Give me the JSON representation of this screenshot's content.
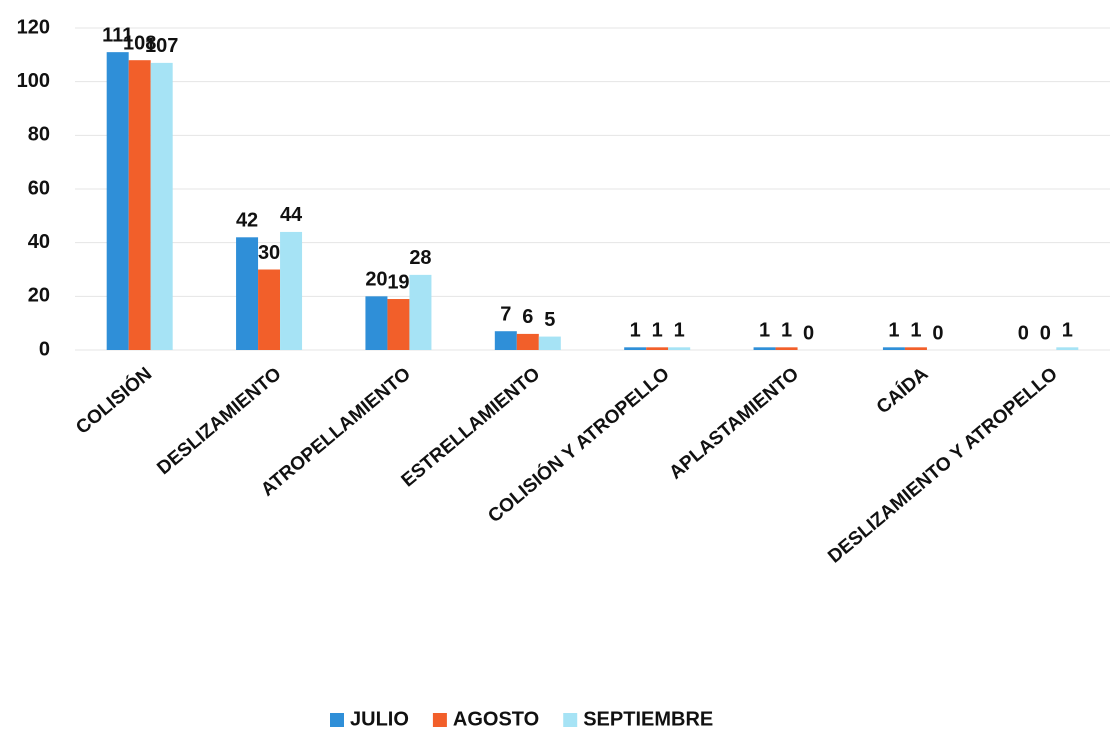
{
  "chart_data": {
    "type": "bar",
    "categories": [
      "COLISIÓN",
      "DESLIZAMIENTO",
      "ATROPELLAMIENTO",
      "ESTRELLAMIENTO",
      "COLISIÓN Y ATROPELLO",
      "APLASTAMIENTO",
      "CAÍDA",
      "DESLIZAMIENTO Y ATROPELLO"
    ],
    "series": [
      {
        "name": "JULIO",
        "color": "#2f8fd8",
        "values": [
          111,
          42,
          20,
          7,
          1,
          1,
          1,
          0
        ]
      },
      {
        "name": "AGOSTO",
        "color": "#f25f2a",
        "values": [
          108,
          30,
          19,
          6,
          1,
          1,
          1,
          0
        ]
      },
      {
        "name": "SEPTIEMBRE",
        "color": "#a6e3f5",
        "values": [
          107,
          44,
          28,
          5,
          1,
          0,
          0,
          1
        ]
      }
    ],
    "ylim": [
      0,
      120
    ],
    "yticks": [
      0,
      20,
      40,
      60,
      80,
      100,
      120
    ],
    "grid": true,
    "legend": "bottom"
  }
}
